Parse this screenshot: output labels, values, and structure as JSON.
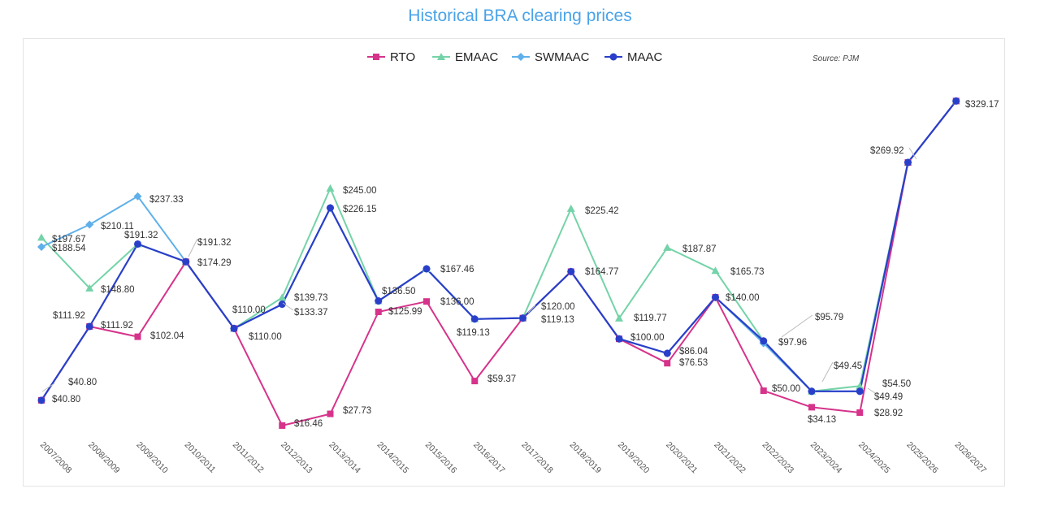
{
  "chart_data": {
    "type": "line",
    "title": "Historical BRA clearing prices",
    "source": "Source: PJM",
    "legend_position": "top-center",
    "grid": false,
    "ylim": [
      0,
      350
    ],
    "categories": [
      "2007/2008",
      "2008/2009",
      "2009/2010",
      "2010/2011",
      "2011/2012",
      "2012/2013",
      "2013/2014",
      "2014/2015",
      "2015/2016",
      "2016/2017",
      "2017/2018",
      "2018/2019",
      "2019/2020",
      "2020/2021",
      "2021/2022",
      "2022/2023",
      "2023/2024",
      "2024/2025",
      "2025/2026",
      "2026/2027"
    ],
    "series": [
      {
        "name": "RTO",
        "color": "#d6338a",
        "marker": "square",
        "values": [
          40.8,
          111.92,
          102.04,
          174.29,
          110.0,
          16.46,
          27.73,
          125.99,
          136.0,
          59.37,
          120.0,
          164.77,
          100.0,
          76.53,
          140.0,
          50.0,
          34.13,
          28.92,
          269.92,
          329.17
        ]
      },
      {
        "name": "EMAAC",
        "color": "#74d3a8",
        "marker": "triangle",
        "values": [
          197.67,
          148.8,
          191.32,
          174.29,
          110.0,
          139.73,
          245.0,
          136.5,
          167.46,
          119.13,
          120.0,
          225.42,
          119.77,
          187.87,
          165.73,
          97.96,
          49.45,
          54.5,
          269.92,
          329.17
        ]
      },
      {
        "name": "SWMAAC",
        "color": "#5fb0ea",
        "marker": "diamond",
        "values": [
          188.54,
          210.11,
          237.33,
          174.29,
          110.0,
          133.37,
          226.15,
          136.5,
          167.46,
          119.13,
          120.0,
          164.77,
          100.0,
          86.04,
          140.0,
          95.79,
          49.45,
          49.49,
          269.92,
          329.17
        ]
      },
      {
        "name": "MAAC",
        "color": "#2a3fc9",
        "marker": "circle",
        "values": [
          40.8,
          111.92,
          191.32,
          174.29,
          110.0,
          133.37,
          226.15,
          136.5,
          167.46,
          119.13,
          120.0,
          164.77,
          100.0,
          86.04,
          140.0,
          97.96,
          49.45,
          49.45,
          269.92,
          329.17
        ]
      }
    ],
    "annotations": [
      {
        "text": "$197.67"
      },
      {
        "text": "$188.54"
      },
      {
        "text": "$148.80"
      },
      {
        "text": "$210.11"
      },
      {
        "text": "$191.32"
      },
      {
        "text": "$237.33"
      },
      {
        "text": "$191.32"
      },
      {
        "text": "$174.29"
      },
      {
        "text": "$111.92"
      },
      {
        "text": "$111.92"
      },
      {
        "text": "$102.04"
      },
      {
        "text": "$40.80"
      },
      {
        "text": "$40.80"
      },
      {
        "text": "$110.00"
      },
      {
        "text": "$110.00"
      },
      {
        "text": "$139.73"
      },
      {
        "text": "$133.37"
      },
      {
        "text": "$16.46"
      },
      {
        "text": "$245.00"
      },
      {
        "text": "$226.15"
      },
      {
        "text": "$27.73"
      },
      {
        "text": "$136.50"
      },
      {
        "text": "$125.99"
      },
      {
        "text": "$167.46"
      },
      {
        "text": "$136.00"
      },
      {
        "text": "$119.13"
      },
      {
        "text": "$59.37"
      },
      {
        "text": "$120.00"
      },
      {
        "text": "$119.13"
      },
      {
        "text": "$225.42"
      },
      {
        "text": "$164.77"
      },
      {
        "text": "$119.77"
      },
      {
        "text": "$100.00"
      },
      {
        "text": "$187.87"
      },
      {
        "text": "$86.04"
      },
      {
        "text": "$76.53"
      },
      {
        "text": "$165.73"
      },
      {
        "text": "$140.00"
      },
      {
        "text": "$95.79"
      },
      {
        "text": "$97.96"
      },
      {
        "text": "$50.00"
      },
      {
        "text": "$49.45"
      },
      {
        "text": "$34.13"
      },
      {
        "text": "$54.50"
      },
      {
        "text": "$49.49"
      },
      {
        "text": "$28.92"
      },
      {
        "text": "$269.92"
      },
      {
        "text": "$329.17"
      }
    ]
  }
}
